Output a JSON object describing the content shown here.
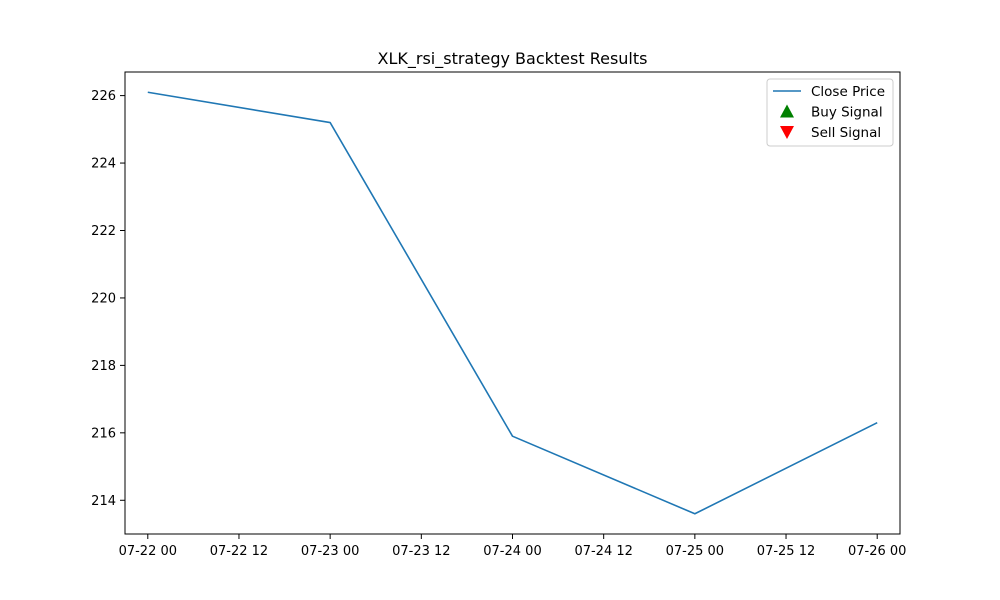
{
  "chart_data": {
    "type": "line",
    "title": "XLK_rsi_strategy Backtest Results",
    "xlabel": "",
    "ylabel": "",
    "x_ticks": [
      "07-22 00",
      "07-22 12",
      "07-23 00",
      "07-23 12",
      "07-24 00",
      "07-24 12",
      "07-25 00",
      "07-25 12",
      "07-26 00"
    ],
    "y_ticks": [
      214,
      216,
      218,
      220,
      222,
      224,
      226
    ],
    "xlim": [
      "07-21 21",
      "07-26 03"
    ],
    "ylim": [
      213.0,
      226.7
    ],
    "series": [
      {
        "name": "Close Price",
        "color": "#1f77b4",
        "x": [
          "07-22 00",
          "07-23 00",
          "07-24 00",
          "07-25 00",
          "07-26 00"
        ],
        "values": [
          226.1,
          225.2,
          215.9,
          213.6,
          216.3
        ]
      }
    ],
    "legend": {
      "placement": "top-right",
      "entries": [
        {
          "label": "Close Price",
          "marker": "line",
          "color": "#1f77b4"
        },
        {
          "label": "Buy Signal",
          "marker": "triangle-up",
          "color": "#008000"
        },
        {
          "label": "Sell Signal",
          "marker": "triangle-down",
          "color": "#ff0000"
        }
      ]
    },
    "grid": false
  }
}
